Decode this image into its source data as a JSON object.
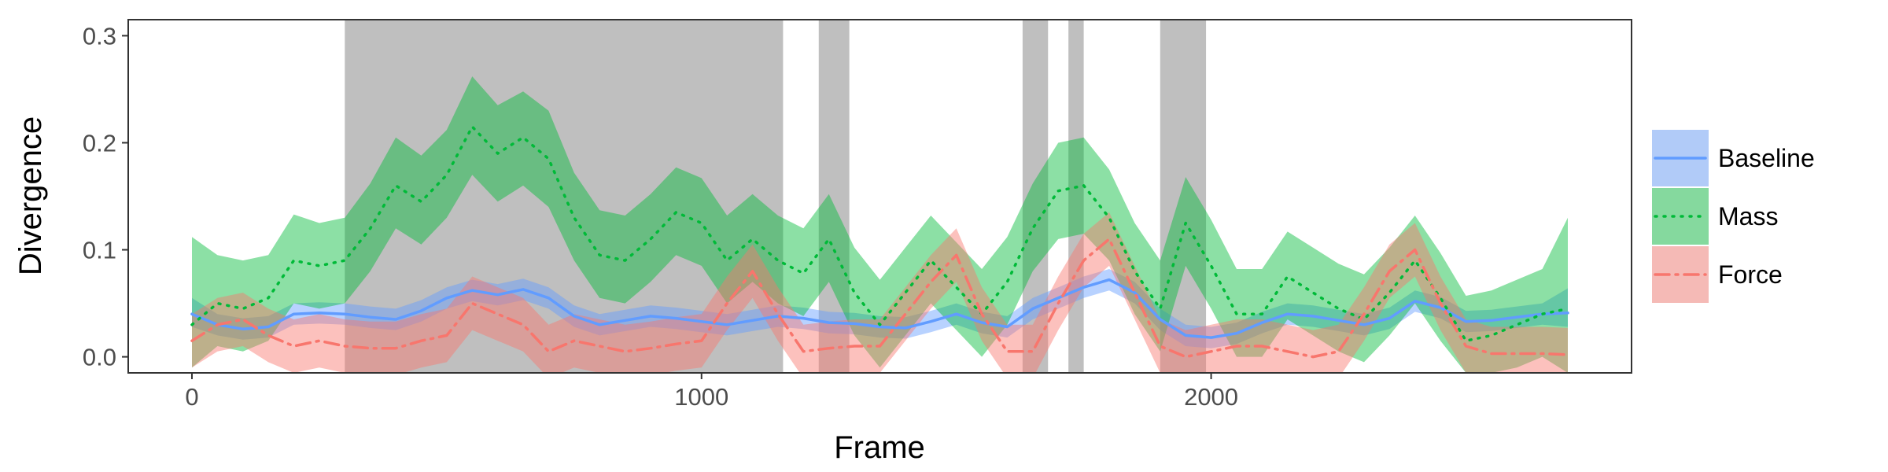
{
  "chart_data": {
    "type": "line",
    "xlabel": "Frame",
    "ylabel": "Divergence",
    "xlim": [
      -125,
      2825
    ],
    "ylim": [
      -0.015,
      0.315
    ],
    "xticks": [
      0,
      1000,
      2000
    ],
    "xtick_labels": [
      "0",
      "1000",
      "2000"
    ],
    "yticks": [
      0.0,
      0.1,
      0.2,
      0.3
    ],
    "ytick_labels": [
      "0.0",
      "0.1",
      "0.2",
      "0.3"
    ],
    "grid": false,
    "legend_position": "right",
    "shaded_regions": [
      [
        300,
        1160
      ],
      [
        1230,
        1290
      ],
      [
        1630,
        1680
      ],
      [
        1720,
        1750
      ],
      [
        1900,
        1990
      ]
    ],
    "shaded_color": "#bfbfbf",
    "series": [
      {
        "name": "Baseline",
        "color": "#619CFF",
        "dash": "solid",
        "x": [
          0,
          50,
          100,
          150,
          200,
          250,
          300,
          350,
          400,
          450,
          500,
          550,
          600,
          650,
          700,
          750,
          800,
          850,
          900,
          950,
          1000,
          1050,
          1100,
          1150,
          1200,
          1250,
          1300,
          1350,
          1400,
          1450,
          1500,
          1550,
          1600,
          1650,
          1700,
          1750,
          1800,
          1850,
          1900,
          1950,
          2000,
          2050,
          2100,
          2150,
          2200,
          2250,
          2300,
          2350,
          2400,
          2450,
          2500,
          2550,
          2600,
          2650,
          2700
        ],
        "values": [
          0.04,
          0.03,
          0.026,
          0.028,
          0.04,
          0.041,
          0.04,
          0.037,
          0.035,
          0.043,
          0.055,
          0.062,
          0.058,
          0.063,
          0.055,
          0.038,
          0.03,
          0.034,
          0.038,
          0.036,
          0.033,
          0.03,
          0.034,
          0.038,
          0.036,
          0.032,
          0.031,
          0.028,
          0.027,
          0.033,
          0.04,
          0.032,
          0.028,
          0.045,
          0.055,
          0.065,
          0.072,
          0.06,
          0.035,
          0.02,
          0.018,
          0.022,
          0.032,
          0.04,
          0.038,
          0.034,
          0.03,
          0.036,
          0.052,
          0.046,
          0.033,
          0.034,
          0.037,
          0.04,
          0.041
        ],
        "lower": [
          0.028,
          0.02,
          0.016,
          0.018,
          0.03,
          0.031,
          0.03,
          0.027,
          0.025,
          0.033,
          0.045,
          0.052,
          0.048,
          0.053,
          0.045,
          0.028,
          0.02,
          0.024,
          0.028,
          0.026,
          0.023,
          0.02,
          0.024,
          0.028,
          0.026,
          0.022,
          0.021,
          0.018,
          0.017,
          0.023,
          0.03,
          0.022,
          0.018,
          0.035,
          0.045,
          0.055,
          0.062,
          0.05,
          0.025,
          0.01,
          0.008,
          0.012,
          0.022,
          0.03,
          0.028,
          0.024,
          0.02,
          0.026,
          0.042,
          0.036,
          0.023,
          0.024,
          0.027,
          0.03,
          0.028
        ],
        "upper": [
          0.055,
          0.04,
          0.036,
          0.038,
          0.05,
          0.051,
          0.05,
          0.047,
          0.045,
          0.053,
          0.065,
          0.072,
          0.068,
          0.073,
          0.065,
          0.048,
          0.04,
          0.044,
          0.048,
          0.046,
          0.043,
          0.04,
          0.044,
          0.048,
          0.046,
          0.042,
          0.041,
          0.038,
          0.037,
          0.043,
          0.05,
          0.042,
          0.038,
          0.055,
          0.065,
          0.075,
          0.082,
          0.07,
          0.045,
          0.03,
          0.028,
          0.032,
          0.042,
          0.05,
          0.048,
          0.044,
          0.04,
          0.046,
          0.062,
          0.056,
          0.043,
          0.044,
          0.047,
          0.05,
          0.064
        ]
      },
      {
        "name": "Mass",
        "color": "#00BA38",
        "dash": "dotted",
        "x": [
          0,
          50,
          100,
          150,
          200,
          250,
          300,
          350,
          400,
          450,
          500,
          550,
          600,
          650,
          700,
          750,
          800,
          850,
          900,
          950,
          1000,
          1050,
          1100,
          1150,
          1200,
          1250,
          1300,
          1350,
          1400,
          1450,
          1500,
          1550,
          1600,
          1650,
          1700,
          1750,
          1800,
          1850,
          1900,
          1950,
          2000,
          2050,
          2100,
          2150,
          2200,
          2250,
          2300,
          2350,
          2400,
          2450,
          2500,
          2550,
          2600,
          2650,
          2700
        ],
        "values": [
          0.03,
          0.05,
          0.045,
          0.055,
          0.09,
          0.085,
          0.09,
          0.12,
          0.16,
          0.145,
          0.17,
          0.215,
          0.19,
          0.205,
          0.185,
          0.13,
          0.095,
          0.09,
          0.11,
          0.135,
          0.125,
          0.09,
          0.11,
          0.09,
          0.078,
          0.11,
          0.06,
          0.03,
          0.06,
          0.09,
          0.065,
          0.04,
          0.07,
          0.12,
          0.155,
          0.16,
          0.13,
          0.08,
          0.045,
          0.125,
          0.085,
          0.04,
          0.04,
          0.075,
          0.06,
          0.045,
          0.035,
          0.06,
          0.09,
          0.055,
          0.015,
          0.02,
          0.03,
          0.04,
          0.045
        ],
        "lower": [
          -0.01,
          0.01,
          0.005,
          0.015,
          0.05,
          0.045,
          0.05,
          0.08,
          0.12,
          0.105,
          0.13,
          0.17,
          0.145,
          0.16,
          0.14,
          0.09,
          0.055,
          0.05,
          0.07,
          0.095,
          0.085,
          0.05,
          0.07,
          0.05,
          0.038,
          0.07,
          0.02,
          -0.01,
          0.02,
          0.05,
          0.025,
          0.0,
          0.03,
          0.08,
          0.11,
          0.115,
          0.09,
          0.04,
          0.005,
          0.085,
          0.045,
          0.0,
          0.0,
          0.035,
          0.02,
          0.005,
          -0.005,
          0.02,
          0.05,
          0.015,
          -0.015,
          -0.015,
          -0.01,
          0.0,
          -0.015
        ],
        "upper": [
          0.112,
          0.095,
          0.09,
          0.095,
          0.133,
          0.125,
          0.13,
          0.162,
          0.205,
          0.188,
          0.212,
          0.262,
          0.235,
          0.248,
          0.23,
          0.172,
          0.137,
          0.132,
          0.152,
          0.177,
          0.167,
          0.132,
          0.152,
          0.132,
          0.12,
          0.152,
          0.102,
          0.072,
          0.102,
          0.132,
          0.107,
          0.082,
          0.112,
          0.162,
          0.2,
          0.205,
          0.175,
          0.125,
          0.09,
          0.168,
          0.128,
          0.082,
          0.082,
          0.117,
          0.102,
          0.087,
          0.077,
          0.102,
          0.132,
          0.097,
          0.057,
          0.062,
          0.072,
          0.082,
          0.13
        ]
      },
      {
        "name": "Force",
        "color": "#F8766D",
        "dash": "dashdot",
        "x": [
          0,
          50,
          100,
          150,
          200,
          250,
          300,
          350,
          400,
          450,
          500,
          550,
          600,
          650,
          700,
          750,
          800,
          850,
          900,
          950,
          1000,
          1050,
          1100,
          1150,
          1200,
          1250,
          1300,
          1350,
          1400,
          1450,
          1500,
          1550,
          1600,
          1650,
          1700,
          1750,
          1800,
          1850,
          1900,
          1950,
          2000,
          2050,
          2100,
          2150,
          2200,
          2250,
          2300,
          2350,
          2400,
          2450,
          2500,
          2550,
          2600,
          2650,
          2700
        ],
        "values": [
          0.015,
          0.03,
          0.035,
          0.02,
          0.01,
          0.015,
          0.01,
          0.008,
          0.008,
          0.015,
          0.02,
          0.05,
          0.04,
          0.03,
          0.005,
          0.015,
          0.01,
          0.005,
          0.008,
          0.012,
          0.015,
          0.05,
          0.08,
          0.04,
          0.005,
          0.008,
          0.01,
          0.01,
          0.04,
          0.07,
          0.095,
          0.04,
          0.005,
          0.005,
          0.05,
          0.09,
          0.11,
          0.06,
          0.01,
          0.0,
          0.005,
          0.01,
          0.01,
          0.005,
          0.0,
          0.005,
          0.04,
          0.08,
          0.1,
          0.05,
          0.01,
          0.003,
          0.003,
          0.003,
          0.002
        ],
        "lower": [
          -0.01,
          0.005,
          0.01,
          -0.005,
          -0.015,
          -0.01,
          -0.015,
          -0.017,
          -0.017,
          -0.01,
          -0.005,
          0.025,
          0.015,
          0.005,
          -0.02,
          -0.01,
          -0.015,
          -0.02,
          -0.017,
          -0.013,
          -0.01,
          0.025,
          0.055,
          0.015,
          -0.02,
          -0.017,
          -0.015,
          -0.015,
          0.015,
          0.045,
          0.07,
          0.015,
          -0.02,
          -0.02,
          0.025,
          0.065,
          0.085,
          0.035,
          -0.015,
          -0.025,
          -0.02,
          -0.015,
          -0.015,
          -0.02,
          -0.025,
          -0.02,
          0.015,
          0.055,
          0.075,
          0.025,
          -0.015,
          -0.022,
          -0.022,
          -0.022,
          -0.023
        ],
        "upper": [
          0.04,
          0.055,
          0.06,
          0.045,
          0.035,
          0.04,
          0.035,
          0.033,
          0.033,
          0.04,
          0.045,
          0.075,
          0.065,
          0.055,
          0.03,
          0.04,
          0.035,
          0.03,
          0.033,
          0.037,
          0.04,
          0.075,
          0.105,
          0.065,
          0.03,
          0.033,
          0.035,
          0.035,
          0.065,
          0.095,
          0.12,
          0.065,
          0.03,
          0.03,
          0.075,
          0.115,
          0.135,
          0.085,
          0.035,
          0.025,
          0.03,
          0.035,
          0.035,
          0.03,
          0.025,
          0.03,
          0.065,
          0.105,
          0.125,
          0.075,
          0.035,
          0.028,
          0.028,
          0.028,
          0.027
        ]
      }
    ]
  }
}
